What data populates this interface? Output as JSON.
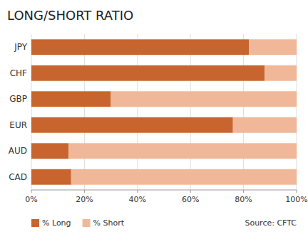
{
  "chart_data": {
    "type": "bar",
    "orientation": "horizontal",
    "stacked": true,
    "title": "LONG/SHORT RATIO",
    "categories": [
      "CAD",
      "AUD",
      "EUR",
      "GBP",
      "CHF",
      "JPY"
    ],
    "series": [
      {
        "name": "% Long",
        "color": "#C8652E",
        "values": [
          15,
          14,
          76,
          30,
          88,
          82
        ]
      },
      {
        "name": "% Short",
        "color": "#F0B898",
        "values": [
          85,
          86,
          24,
          70,
          12,
          18
        ]
      }
    ],
    "xlim": [
      0,
      100
    ],
    "xticks": [
      {
        "value": 0,
        "label": "0%"
      },
      {
        "value": 20,
        "label": "20%"
      },
      {
        "value": 40,
        "label": "40%"
      },
      {
        "value": 60,
        "label": "60%"
      },
      {
        "value": 80,
        "label": "80%"
      },
      {
        "value": 100,
        "label": "100%"
      }
    ],
    "grid": true,
    "legend": "bottom",
    "annotations": [
      "Source: CFTC"
    ]
  }
}
